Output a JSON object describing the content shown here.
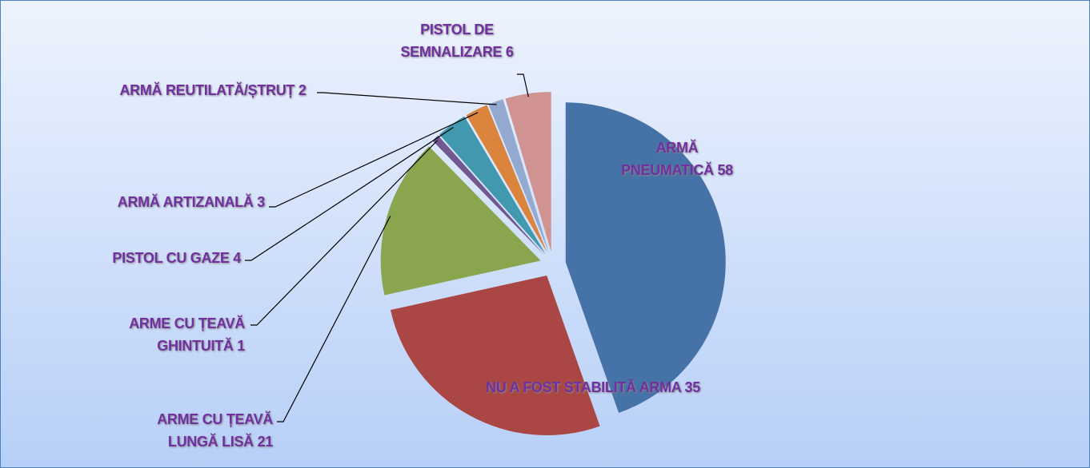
{
  "chart_data": {
    "type": "pie",
    "categories": [
      "ARMĂ PNEUMATICĂ",
      "NU A FOST STABILITĂ ARMA",
      "ARME CU ȚEAVĂ LUNGĂ LISĂ",
      "ARME CU ȚEAVĂ GHINTUITĂ",
      "PISTOL CU GAZE",
      "ARMĂ ARTIZANALĂ",
      "ARMĂ REUTILATĂ/ȘTRUȚ",
      "PISTOL DE SEMNALIZARE"
    ],
    "values": [
      58,
      35,
      21,
      1,
      4,
      3,
      2,
      6
    ],
    "colors": [
      "#4572a7",
      "#aa4643",
      "#89a54e",
      "#71588f",
      "#4198af",
      "#db843d",
      "#93a9cf",
      "#d19392"
    ]
  }
}
